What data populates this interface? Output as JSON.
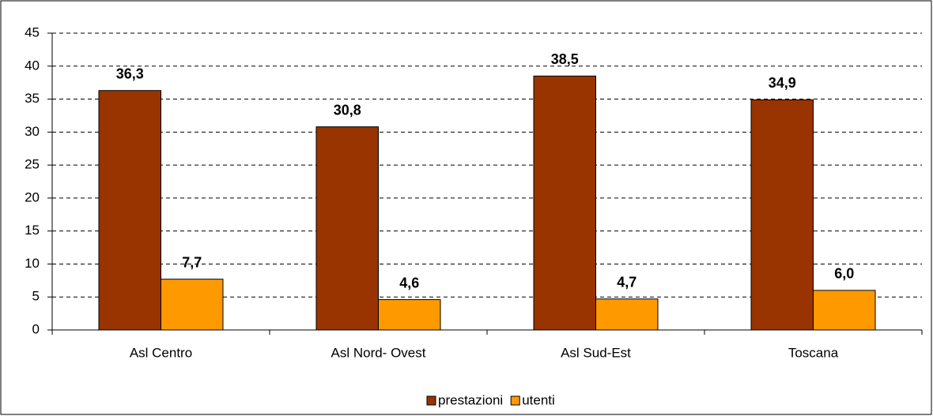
{
  "chart_data": {
    "type": "bar",
    "categories": [
      "Asl Centro",
      "Asl Nord- Ovest",
      "Asl Sud-Est",
      "Toscana"
    ],
    "series": [
      {
        "name": "prestazioni",
        "color": "#993300",
        "values": [
          36.3,
          30.8,
          38.5,
          34.9
        ],
        "value_labels": [
          "36,3",
          "30,8",
          "38,5",
          "34,9"
        ]
      },
      {
        "name": "utenti",
        "color": "#ff9900",
        "values": [
          7.7,
          4.6,
          4.7,
          6.0
        ],
        "value_labels": [
          "7,7",
          "4,6",
          "4,7",
          "6,0"
        ]
      }
    ],
    "ylim": [
      0,
      45
    ],
    "yticks": [
      0,
      5,
      10,
      15,
      20,
      25,
      30,
      35,
      40,
      45
    ],
    "grid": true,
    "legend": "bottom"
  }
}
